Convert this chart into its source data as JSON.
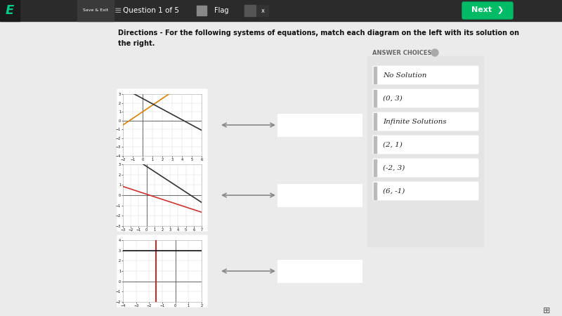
{
  "bg_color": "#ebebeb",
  "panel_bg": "#ffffff",
  "title_line1": "Directions - For the following systems of equations, match each diagram on the left with its solution on",
  "title_line2": "the right.",
  "answer_choices_label": "ANSWER CHOICES",
  "answer_choices": [
    "No Solution",
    "(0, 3)",
    "Infinite Solutions",
    "(2, 1)",
    "(-2, 3)",
    "(6, -1)"
  ],
  "graph1": {
    "xlim": [
      -2,
      6
    ],
    "ylim": [
      -4,
      3
    ],
    "xticks": [
      -2,
      -1,
      0,
      1,
      2,
      3,
      4,
      5,
      6
    ],
    "yticks": [
      -4,
      -3,
      -2,
      -1,
      0,
      1,
      2,
      3
    ],
    "line1_color": "#d4820a",
    "line1_slope": 0.75,
    "line1_intercept": 1.0,
    "line2_color": "#333333",
    "line2_slope": -0.6,
    "line2_intercept": 2.5
  },
  "graph2": {
    "xlim": [
      -3,
      7
    ],
    "ylim": [
      -3,
      3
    ],
    "xticks": [
      -3,
      -2,
      -1,
      0,
      1,
      2,
      3,
      4,
      5,
      6,
      7
    ],
    "yticks": [
      -3,
      -2,
      -1,
      0,
      1,
      2,
      3
    ],
    "line1_color": "#cc3333",
    "line1_slope": -0.25,
    "line1_intercept": 0.1,
    "line2_color": "#333333",
    "line2_slope": -0.5,
    "line2_intercept": 2.8
  },
  "graph3": {
    "xlim": [
      -4,
      2
    ],
    "ylim": [
      -2,
      4
    ],
    "xticks": [
      -4,
      -3,
      -2,
      -1,
      0,
      1,
      2
    ],
    "yticks": [
      -2,
      -1,
      0,
      1,
      2,
      3,
      4
    ],
    "line1_color": "#cc2222",
    "line1_x": -1.5,
    "line2_color": "#111111",
    "line2_y": 3.0
  },
  "top_bar_color": "#2b2b2b",
  "logo_bg": "#1a1a1a",
  "logo_color": "#00cc88",
  "next_btn_color": "#00bb66",
  "arrow_color": "#888888",
  "card_bg": "#ffffff",
  "card_edge": "#cccccc",
  "drop_box_bg": "#ffffff",
  "drop_box_edge": "#aaaaaa",
  "ac_panel_bg": "#e4e4e4",
  "ac_btn_bg": "#ffffff",
  "ac_btn_edge": "#cccccc",
  "ac_bar_color": "#bbbbbb",
  "ac_text_color": "#222222"
}
